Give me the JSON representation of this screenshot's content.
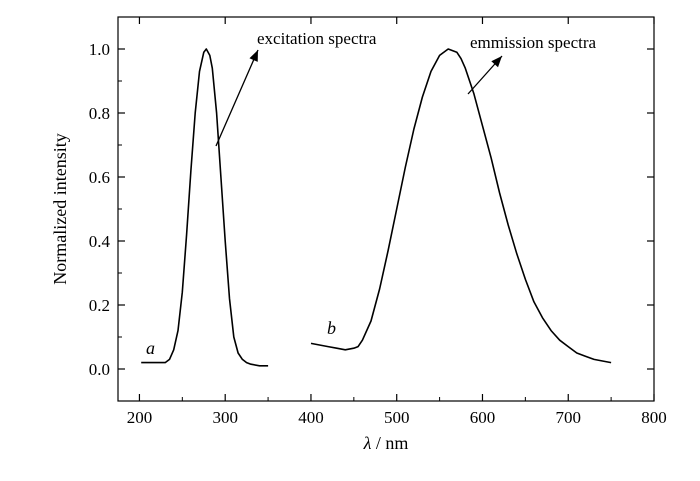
{
  "chart_data": {
    "type": "line",
    "title": "",
    "xlabel": "λ / nm",
    "xlabel_symbol": "λ",
    "xlabel_unit": "/ nm",
    "ylabel": "Normalized intensity",
    "xlim": [
      175,
      800
    ],
    "ylim": [
      -0.1,
      1.1
    ],
    "xticks": [
      200,
      300,
      400,
      500,
      600,
      700,
      800
    ],
    "yticks": [
      0.0,
      0.2,
      0.4,
      0.6,
      0.8,
      1.0
    ],
    "ytick_labels": [
      "0.0",
      "0.2",
      "0.4",
      "0.6",
      "0.8",
      "1.0"
    ],
    "grid": false,
    "series": [
      {
        "label": "a",
        "x": [
          202,
          220,
          230,
          235,
          240,
          245,
          250,
          255,
          260,
          265,
          270,
          275,
          278,
          282,
          285,
          290,
          295,
          300,
          305,
          310,
          315,
          320,
          325,
          330,
          340,
          350
        ],
        "y": [
          0.02,
          0.02,
          0.02,
          0.03,
          0.06,
          0.12,
          0.24,
          0.42,
          0.62,
          0.8,
          0.93,
          0.99,
          1.0,
          0.98,
          0.94,
          0.8,
          0.6,
          0.4,
          0.22,
          0.1,
          0.05,
          0.03,
          0.02,
          0.015,
          0.01,
          0.01
        ]
      },
      {
        "label": "b",
        "x": [
          400,
          410,
          420,
          430,
          440,
          450,
          455,
          460,
          470,
          480,
          490,
          500,
          510,
          520,
          530,
          540,
          550,
          560,
          570,
          575,
          580,
          590,
          600,
          610,
          620,
          630,
          640,
          650,
          660,
          670,
          680,
          690,
          700,
          710,
          720,
          730,
          740,
          750
        ],
        "y": [
          0.08,
          0.075,
          0.07,
          0.065,
          0.06,
          0.065,
          0.07,
          0.09,
          0.15,
          0.25,
          0.37,
          0.5,
          0.63,
          0.75,
          0.85,
          0.93,
          0.98,
          1.0,
          0.99,
          0.97,
          0.94,
          0.86,
          0.76,
          0.66,
          0.55,
          0.45,
          0.36,
          0.28,
          0.21,
          0.16,
          0.12,
          0.09,
          0.07,
          0.05,
          0.04,
          0.03,
          0.025,
          0.02
        ]
      }
    ],
    "annotations": [
      {
        "text": "excitation spectra"
      },
      {
        "text": "emmission spectra"
      }
    ],
    "line_color": "#000000"
  }
}
